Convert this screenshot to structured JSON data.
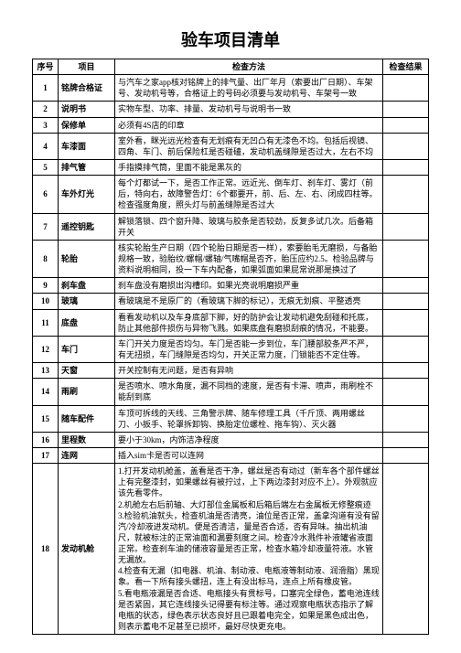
{
  "title": "验车项目清单",
  "headers": {
    "seq": "序号",
    "item": "项目",
    "method": "检查方法",
    "result": "检查结果"
  },
  "rows": [
    {
      "seq": "1",
      "item": "铭牌合格证",
      "method": "与汽车之家app核对铭牌上的排气量、出厂年月（索要出厂日期）、车架号、发动机号等，合格证上的号码必须要与发动机号、车架号一致"
    },
    {
      "seq": "2",
      "item": "说明书",
      "method": "实物车型、功率、排量、发动机号与说明书一致"
    },
    {
      "seq": "3",
      "item": "保修单",
      "method": "必须有4S店的印章"
    },
    {
      "seq": "4",
      "item": "车漆面",
      "method": "室外看，眯光远光检查有无划痕有无凹凸有无漆色不均。包括后视镜、四角、车门、前后保险杠是否碰磕，发动机盖缝隙是否过大，左右不均"
    },
    {
      "seq": "5",
      "item": "排气管",
      "method": "手指摸排气筒，里面不能是黑灰的"
    },
    {
      "seq": "6",
      "item": "车外灯光",
      "method": "每个灯都试一下，是否工作正常。远近光、倒车灯、刹车灯、雾灯（前后，特向右，故障警告灯：6个都要开，前、后、左、右、闭成四柱等。检查强度角度，照头灯与前盖缝隙是否过大"
    },
    {
      "seq": "7",
      "item": "遥控钥匙",
      "method": "解锁落锁、四个窗升降、玻璃与胶条是否较劲，反复多试几次。后备箱开关"
    },
    {
      "seq": "8",
      "item": "轮胎",
      "method": "核实轮胎生产日期（四个轮胎日期是否一样），索要胎毛无磨损，与备胎规格一致，验胎纹/螺帽/螺轴/气嘴帽是否齐，胎压应约2.5。检验品牌与资料说明相同，投一下车内配备，如果弧面如果屁常说那是换过了"
    },
    {
      "seq": "9",
      "item": "刹车盘",
      "method": "刹车盘没有磨损出沟槽印。如果光亮说明磨损严重"
    },
    {
      "seq": "10",
      "item": "玻璃",
      "method": "看玻璃是不是原厂的（看玻璃下脚的标记），无痕无划痕、平整透亮"
    },
    {
      "seq": "11",
      "item": "底盘",
      "method": "看看发动机以及车身底部下脚，好的防护会让发动机避免刮碰和托底，防止其他部件损伤与异物飞溅。如果底盘有磨损刮痕的情况，不能要。"
    },
    {
      "seq": "12",
      "item": "车门",
      "method": "车门开关力度是否均匀。车门是否能一步到位，车门腰部胶条严不严，有无扭损，车门缝隙是否均匀，开关正常力度，门锁能否不定住等。"
    },
    {
      "seq": "13",
      "item": "天窗",
      "method": "开关控制有无问题，是否有异响"
    },
    {
      "seq": "14",
      "item": "雨刷",
      "method": "是否喷水、喷水角度，漏不同档的速度，是否有卡滞、喷声，雨刷栓不能刮到底"
    },
    {
      "seq": "15",
      "item": "随车配件",
      "method": "车顶可拆线的天线、三角警示牌、随车修理工具（千斤顶、两用螺丝刀、小扳手、轮罩拆卸钩、换胎定位螺栓、拖车钩）、灭火器"
    },
    {
      "seq": "16",
      "item": "里程数",
      "method": "要小于30km，内饰洁净程度"
    },
    {
      "seq": "17",
      "item": "连网",
      "method": "插入sim卡是否可以连网"
    },
    {
      "seq": "18",
      "item": "发动机舱",
      "method": "1.打开发动机舱盖，盖看是否干净，螺丝是否有动过（新车各个部件螺丝上有完整漆封，如果螺丝有被拧过，上下两边漆封对应不上）。外观就应该先看零件。\n2.机舱左右后前轴、大灯部位金属板和后箱后端左右金属板无修整痕迹\n3.检验机油就头，检查机油是否清亮，油位是否正常，盖拿沟道有没有留汽/冷却液进发动机。便是否清洁，量是否合适，否有异味。抽出机油尺，就被标注的正常油面和漏要刻度之间。检查冷水溅件补液罐省液面正常。检查刹车油的储液容量是否正常，检查水箱冷却液量符液。水管无漏放。\n4.检查有无漏（扣电器、机油、制动液、电瓶液等制动液、润滑脂）黑现象。看一下所有接头螺扭，连上有没出标马，连点上所有橡皮管。\n5.看电瓶液漏是否合适、电瓶接头有贯标号，口塞完全绿色，蓄电池连线是否紧固，其它连线接头记得要有标注等。通过观察电瓶状态指示了解电瓶的状态，绿色表示状态良好且已跟着电完全，如果是黑色成出色，则表示蓄电不足甚至已损坏，最好尽快更充电。"
    }
  ]
}
